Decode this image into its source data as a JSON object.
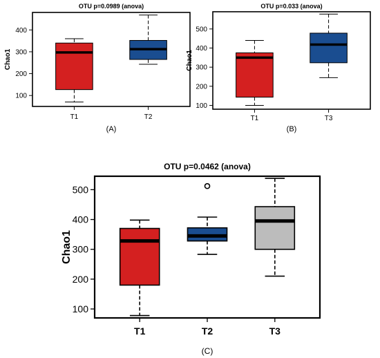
{
  "chart_data": [
    {
      "id": "A",
      "type": "boxplot",
      "title": "OTU p=0.0989 (anova)",
      "ylabel": "Chao1",
      "panel_label": "(A)",
      "categories": [
        "T1",
        "T2"
      ],
      "ylim": [
        50,
        480
      ],
      "yticks": [
        100,
        200,
        300,
        400
      ],
      "grid": false,
      "boxes": [
        {
          "category": "T1",
          "color": "#d42020",
          "min": 70,
          "q1": 127,
          "median": 297,
          "q3": 340,
          "max": 360,
          "outliers": []
        },
        {
          "category": "T2",
          "color": "#1a4d90",
          "min": 243,
          "q1": 265,
          "median": 312,
          "q3": 352,
          "max": 468,
          "outliers": []
        }
      ]
    },
    {
      "id": "B",
      "type": "boxplot",
      "title": "OTU p=0.033 (anova)",
      "ylabel": "Chao1",
      "panel_label": "(B)",
      "categories": [
        "T1",
        "T3"
      ],
      "ylim": [
        80,
        590
      ],
      "yticks": [
        100,
        200,
        300,
        400,
        500
      ],
      "grid": false,
      "boxes": [
        {
          "category": "T1",
          "color": "#d42020",
          "min": 100,
          "q1": 143,
          "median": 350,
          "q3": 375,
          "max": 440,
          "outliers": []
        },
        {
          "category": "T3",
          "color": "#1a4d90",
          "min": 245,
          "q1": 323,
          "median": 418,
          "q3": 478,
          "max": 578,
          "outliers": []
        }
      ]
    },
    {
      "id": "C",
      "type": "boxplot",
      "title": "OTU p=0.0462 (anova)",
      "ylabel": "Chao1",
      "panel_label": "(C)",
      "categories": [
        "T1",
        "T2",
        "T3"
      ],
      "ylim": [
        70,
        545
      ],
      "yticks": [
        100,
        200,
        300,
        400,
        500
      ],
      "grid": false,
      "boxes": [
        {
          "category": "T1",
          "color": "#d42020",
          "min": 78,
          "q1": 180,
          "median": 328,
          "q3": 370,
          "max": 398,
          "outliers": []
        },
        {
          "category": "T2",
          "color": "#1a4d90",
          "min": 283,
          "q1": 328,
          "median": 345,
          "q3": 372,
          "max": 408,
          "outliers": [
            512
          ]
        },
        {
          "category": "T3",
          "color": "#bcbcbc",
          "min": 210,
          "q1": 300,
          "median": 395,
          "q3": 443,
          "max": 538,
          "outliers": []
        }
      ]
    }
  ]
}
